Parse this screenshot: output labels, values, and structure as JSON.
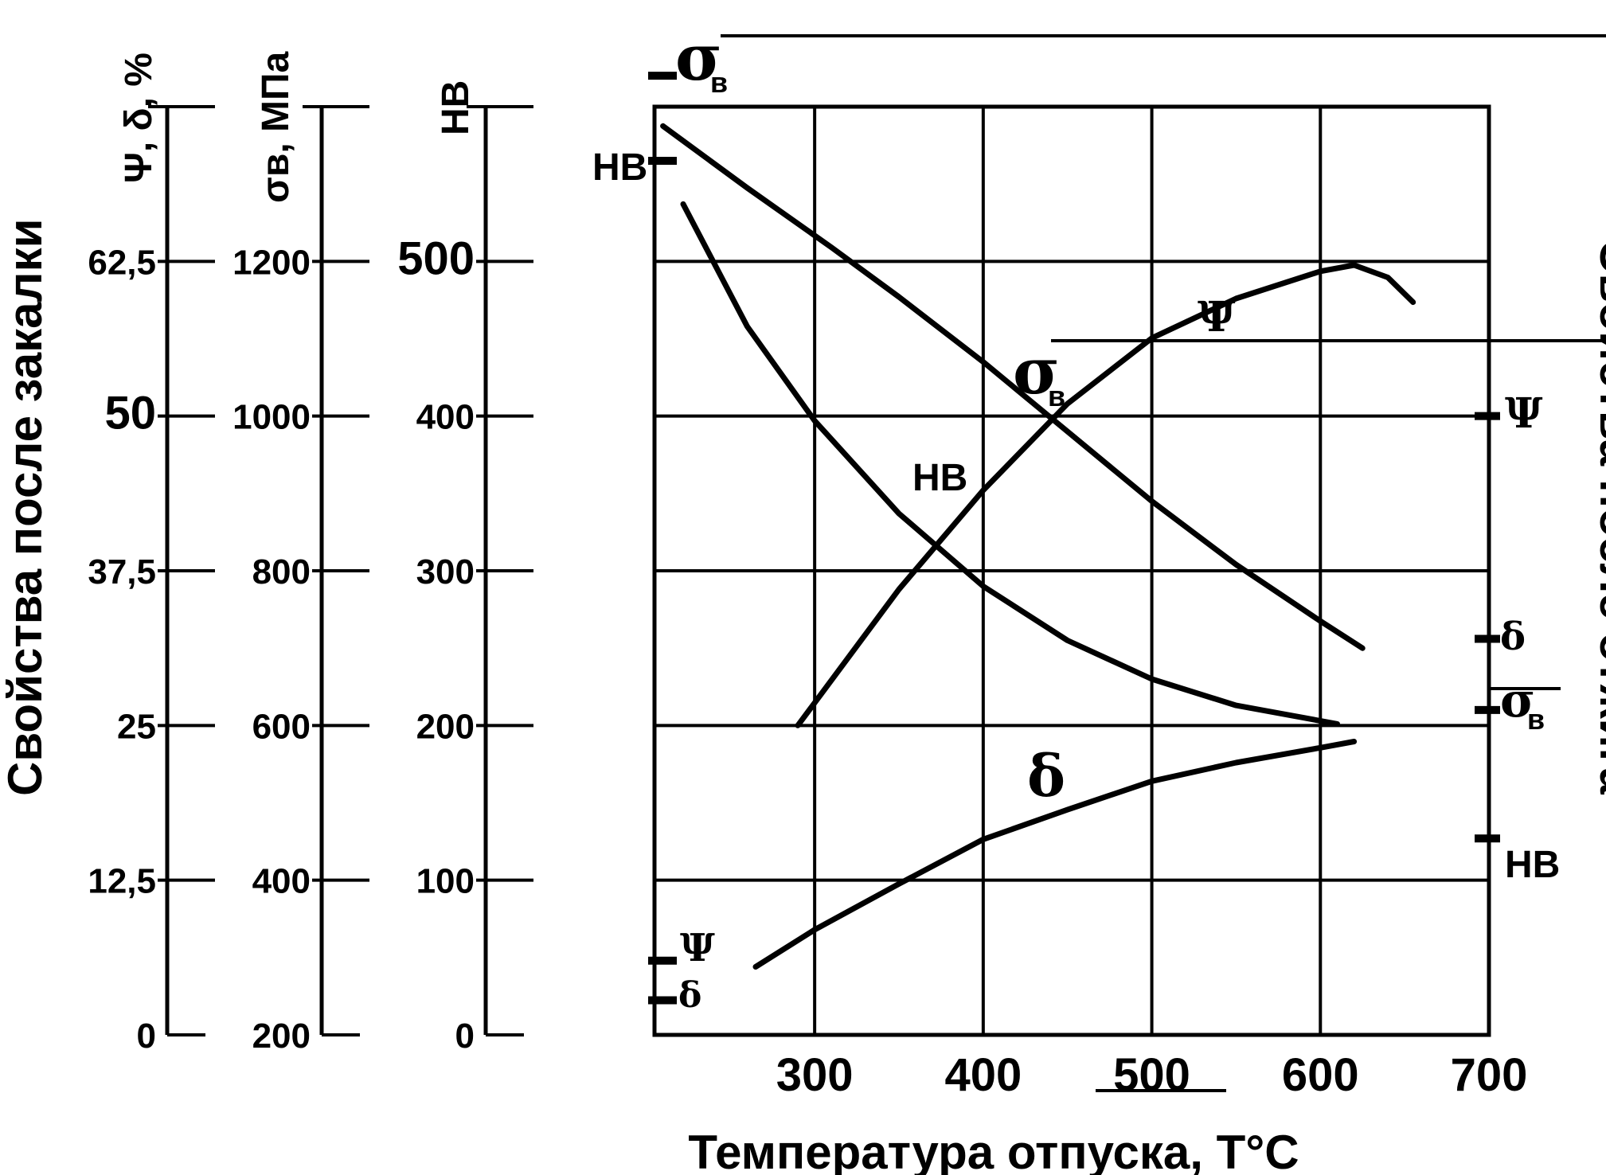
{
  "chart_data": {
    "type": "line",
    "x_axis": {
      "label": "Температура отпуска, Т°С",
      "ticks": [
        "300",
        "400",
        "500",
        "600",
        "700"
      ],
      "tick_values": [
        300,
        400,
        500,
        600,
        700
      ],
      "range": [
        205,
        700
      ]
    },
    "left_axes": [
      {
        "name": "Ψ, δ, %",
        "ticks": [
          "0",
          "12,5",
          "25",
          "37,5",
          "50",
          "62,5"
        ],
        "tick_values": [
          0,
          12.5,
          25,
          37.5,
          50,
          62.5
        ],
        "range": [
          0,
          75
        ]
      },
      {
        "name": "σв, МПа",
        "ticks": [
          "200",
          "400",
          "600",
          "800",
          "1000",
          "1200"
        ],
        "tick_values": [
          200,
          400,
          600,
          800,
          1000,
          1200
        ],
        "range": [
          200,
          1400
        ]
      },
      {
        "name": "HB",
        "ticks": [
          "0",
          "100",
          "200",
          "300",
          "400",
          "500"
        ],
        "tick_values": [
          0,
          100,
          200,
          300,
          400,
          500
        ],
        "range": [
          0,
          600
        ]
      }
    ],
    "left_title": "Свойства после закалки",
    "right_title": "Свойства после отжига",
    "series": [
      {
        "name": "σв",
        "unit_axis": "σв, МПа",
        "x": [
          210,
          260,
          310,
          350,
          400,
          450,
          500,
          550,
          600,
          625
        ],
        "y": [
          1375,
          1295,
          1218,
          1154,
          1070,
          980,
          890,
          808,
          735,
          700
        ]
      },
      {
        "name": "HB",
        "unit_axis": "HB",
        "x": [
          222,
          260,
          300,
          350,
          400,
          450,
          500,
          550,
          590,
          610
        ],
        "y": [
          537,
          458,
          397,
          337,
          290,
          255,
          230,
          213,
          205,
          201
        ]
      },
      {
        "name": "Ψ",
        "unit_axis": "Ψ, δ, %",
        "x": [
          290,
          350,
          400,
          450,
          500,
          550,
          600,
          620,
          640,
          655
        ],
        "y": [
          25,
          36,
          44,
          51,
          56.3,
          59.5,
          61.7,
          62.2,
          61.2,
          59.2
        ]
      },
      {
        "name": "δ",
        "unit_axis": "Ψ, δ, %",
        "x": [
          265,
          300,
          350,
          400,
          450,
          500,
          550,
          600,
          620
        ],
        "y": [
          5.5,
          8.5,
          12.2,
          15.8,
          18.2,
          20.5,
          22,
          23.2,
          23.7
        ]
      }
    ],
    "quenched_markers": [
      {
        "name": "σв",
        "axis": "σв, МПа",
        "value": 1440
      },
      {
        "name": "HB",
        "axis": "HB",
        "value": 565
      },
      {
        "name": "Ψ",
        "axis": "Ψ, δ, %",
        "value": 6
      },
      {
        "name": "δ",
        "axis": "Ψ, δ, %",
        "value": 2.8
      }
    ],
    "annealed_markers": [
      {
        "name": "Ψ",
        "axis": "Ψ, δ, %",
        "value": 50
      },
      {
        "name": "δ",
        "axis": "Ψ, δ, %",
        "value": 32
      },
      {
        "name": "σв",
        "axis": "σв, МПа",
        "value": 620
      },
      {
        "name": "HB",
        "axis": "HB",
        "value": 127
      }
    ],
    "curve_labels": {
      "sigma_b": "σ",
      "sigma_sub": "в",
      "hb": "HB",
      "psi": "Ψ",
      "delta": "δ"
    },
    "grid": true
  }
}
